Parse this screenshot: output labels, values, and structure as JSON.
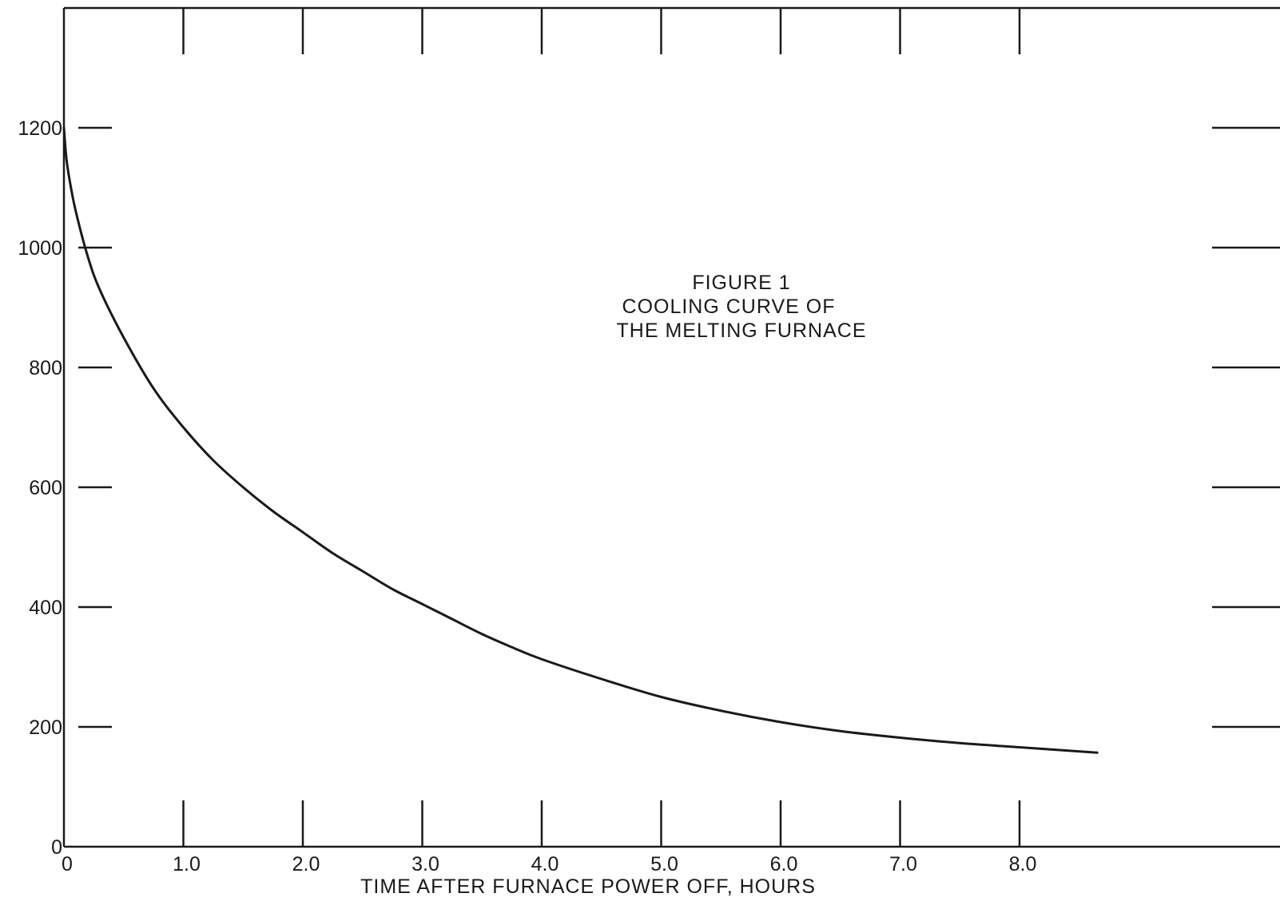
{
  "chart_data": {
    "type": "line",
    "title_lines": [
      "FIGURE 1",
      "COOLING CURVE OF",
      "THE MELTING FURNACE"
    ],
    "xlabel": "TIME AFTER FURNACE POWER OFF, HOURS",
    "ylabel": "",
    "xlim": [
      0,
      10
    ],
    "ylim": [
      0,
      1400
    ],
    "grid": false,
    "x_ticks": [
      {
        "value": 0,
        "label": "0"
      },
      {
        "value": 1,
        "label": "1.0"
      },
      {
        "value": 2,
        "label": "2.0"
      },
      {
        "value": 3,
        "label": "3.0"
      },
      {
        "value": 4,
        "label": "4.0"
      },
      {
        "value": 5,
        "label": "5.0"
      },
      {
        "value": 6,
        "label": "6.0"
      },
      {
        "value": 7,
        "label": "7.0"
      },
      {
        "value": 8,
        "label": "8.0"
      }
    ],
    "y_ticks": [
      {
        "value": 0,
        "label": "0"
      },
      {
        "value": 200,
        "label": "200"
      },
      {
        "value": 400,
        "label": "400"
      },
      {
        "value": 600,
        "label": "600"
      },
      {
        "value": 800,
        "label": "800"
      },
      {
        "value": 1000,
        "label": "1000"
      },
      {
        "value": 1200,
        "label": "1200"
      }
    ],
    "series": [
      {
        "x": [
          0,
          0.02,
          0.05,
          0.1,
          0.2,
          0.3,
          0.5,
          0.75,
          1.0,
          1.25,
          1.5,
          1.75,
          2.0,
          2.25,
          2.5,
          2.75,
          3.0,
          3.25,
          3.5,
          3.75,
          4.0,
          4.5,
          5.0,
          5.5,
          6.0,
          6.5,
          7.0,
          7.5,
          8.0,
          8.65
        ],
        "y": [
          1200,
          1150,
          1110,
          1060,
          985,
          930,
          850,
          765,
          700,
          645,
          600,
          560,
          525,
          490,
          460,
          430,
          405,
          380,
          355,
          333,
          313,
          280,
          250,
          227,
          208,
          193,
          182,
          173,
          166,
          157
        ]
      }
    ]
  },
  "colors": {
    "ink": "#1a1a1a",
    "background": "#ffffff"
  }
}
